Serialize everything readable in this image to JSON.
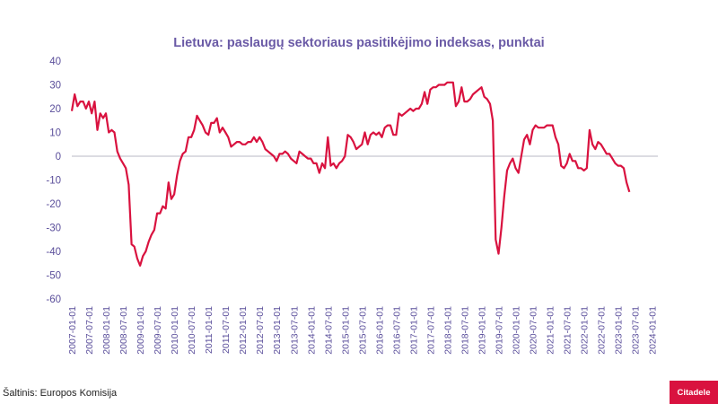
{
  "chart_data": {
    "type": "line",
    "title": "Lietuva: paslaugų sektoriaus pasitikėjimo indeksas, punktai",
    "xlabel": "",
    "ylabel": "",
    "ylim": [
      -60,
      40
    ],
    "yticks": [
      "40",
      "30",
      "20",
      "10",
      "0",
      "-10",
      "-20",
      "-30",
      "-40",
      "-50",
      "-60"
    ],
    "ytick_values": [
      40,
      30,
      20,
      10,
      0,
      -10,
      -20,
      -30,
      -40,
      -50,
      -60
    ],
    "xtick_labels": [
      "2007-01-01",
      "2007-07-01",
      "2008-01-01",
      "2008-07-01",
      "2009-01-01",
      "2009-07-01",
      "2010-01-01",
      "2010-07-01",
      "2011-01-01",
      "2011-07-01",
      "2012-01-01",
      "2012-07-01",
      "2013-01-01",
      "2013-07-01",
      "2014-01-01",
      "2014-07-01",
      "2015-01-01",
      "2015-07-01",
      "2016-01-01",
      "2016-07-01",
      "2017-01-01",
      "2017-07-01",
      "2018-01-01",
      "2018-07-01",
      "2019-01-01",
      "2019-07-01",
      "2020-01-01",
      "2020-07-01",
      "2021-01-01",
      "2021-07-01",
      "2022-01-01",
      "2022-07-01",
      "2023-01-01",
      "2023-07-01",
      "2024-01-01"
    ],
    "x_start": "2007-01",
    "series": [
      {
        "name": "Paslaugų sektoriaus pasitikėjimo indeksas",
        "color": "#d9123f",
        "values": [
          19,
          26,
          21,
          23,
          23,
          20,
          23,
          18,
          23,
          11,
          18,
          16,
          18,
          10,
          11,
          10,
          2,
          -1,
          -3,
          -5,
          -12,
          -37,
          -38,
          -43,
          -46,
          -42,
          -40,
          -36,
          -33,
          -31,
          -24,
          -24,
          -21,
          -22,
          -11,
          -18,
          -16,
          -8,
          -2,
          1,
          2,
          8,
          8,
          11,
          17,
          15,
          13,
          10,
          9,
          14,
          14,
          16,
          10,
          12,
          10,
          8,
          4,
          5,
          6,
          6,
          5,
          5,
          6,
          6,
          8,
          6,
          8,
          6,
          3,
          2,
          1,
          0,
          -2,
          1,
          1,
          2,
          1,
          -1,
          -2,
          -3,
          2,
          1,
          0,
          -1,
          -1,
          -3,
          -3,
          -7,
          -3,
          -5,
          8,
          -4,
          -3,
          -5,
          -3,
          -2,
          0,
          9,
          8,
          6,
          3,
          4,
          5,
          10,
          5,
          9,
          10,
          9,
          10,
          8,
          12,
          13,
          13,
          9,
          9,
          18,
          17,
          18,
          19,
          20,
          19,
          20,
          20,
          22,
          27,
          22,
          28,
          29,
          29,
          30,
          30,
          30,
          31,
          31,
          31,
          21,
          23,
          29,
          23,
          23,
          24,
          26,
          27,
          28,
          29,
          25,
          24,
          22,
          15,
          -35,
          -41,
          -30,
          -17,
          -6,
          -3,
          -1,
          -5,
          -7,
          0,
          7,
          9,
          5,
          11,
          13,
          12,
          12,
          12,
          13,
          13,
          13,
          8,
          5,
          -4,
          -5,
          -3,
          1,
          -2,
          -2,
          -5,
          -5,
          -6,
          -5,
          11,
          5,
          3,
          6,
          5,
          3,
          1,
          1,
          -1,
          -3,
          -4,
          -4,
          -5,
          -11,
          -15
        ]
      }
    ]
  },
  "source_text": "Šaltinis: Europos Komisija",
  "brand": {
    "logo_text": "Citadele",
    "color": "#d9123f"
  }
}
